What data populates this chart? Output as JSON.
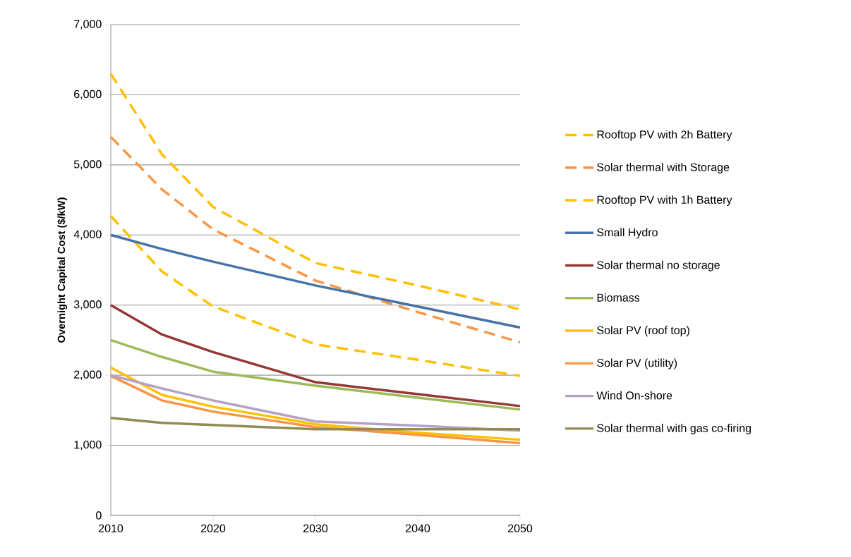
{
  "chart_data": {
    "type": "line",
    "ylabel": "Overnight Capital Cost ($/kW)",
    "x": [
      2010,
      2015,
      2020,
      2030,
      2040,
      2050
    ],
    "xlim": [
      2010,
      2050
    ],
    "xticks": [
      2010,
      2020,
      2030,
      2040,
      2050
    ],
    "ylim": [
      0,
      7000
    ],
    "yticks": [
      0,
      {
        "value": 1000,
        "label": "1,000"
      },
      {
        "value": 2000,
        "label": "2,000"
      },
      {
        "value": 3000,
        "label": "3,000"
      },
      {
        "value": 4000,
        "label": "4,000"
      },
      {
        "value": 5000,
        "label": "5,000"
      },
      {
        "value": 6000,
        "label": "6,000"
      },
      {
        "value": 7000,
        "label": "7,000"
      }
    ],
    "grid": "y",
    "legend": "right",
    "marker": "none",
    "series": [
      {
        "name": "Rooftop PV with 2h Battery",
        "color": "#ffc000",
        "line_style": "dashed",
        "values": [
          6300,
          5150,
          4400,
          3600,
          3280,
          2940
        ]
      },
      {
        "name": "Solar thermal with Storage",
        "color": "#f79646",
        "line_style": "dashed",
        "values": [
          5400,
          4650,
          4080,
          3350,
          2900,
          2470
        ]
      },
      {
        "name": "Rooftop PV with 1h Battery",
        "color": "#ffc000",
        "line_style": "dashed",
        "values": [
          4270,
          3480,
          2980,
          2440,
          2220,
          1990
        ]
      },
      {
        "name": "Small Hydro",
        "color": "#4572a7",
        "line_style": "solid",
        "values": [
          4000,
          3800,
          3620,
          3280,
          2980,
          2680
        ]
      },
      {
        "name": "Solar thermal no storage",
        "color": "#953735",
        "line_style": "solid",
        "values": [
          3000,
          2580,
          2330,
          1900,
          1730,
          1560
        ]
      },
      {
        "name": "Biomass",
        "color": "#9bbb59",
        "line_style": "solid",
        "values": [
          2500,
          2260,
          2050,
          1850,
          1680,
          1510
        ]
      },
      {
        "name": "Solar PV (roof top)",
        "color": "#ffc000",
        "line_style": "solid",
        "values": [
          2110,
          1720,
          1550,
          1300,
          1180,
          1080
        ]
      },
      {
        "name": "Solar PV (utility)",
        "color": "#f79646",
        "line_style": "solid",
        "values": [
          1990,
          1640,
          1480,
          1260,
          1150,
          1030
        ]
      },
      {
        "name": "Wind On-shore",
        "color": "#b3a2c7",
        "line_style": "solid",
        "values": [
          2000,
          1810,
          1640,
          1340,
          1280,
          1210
        ]
      },
      {
        "name": "Solar thermal with gas co-firing",
        "color": "#948a54",
        "line_style": "solid",
        "values": [
          1390,
          1320,
          1290,
          1230,
          1230,
          1230
        ]
      }
    ]
  }
}
